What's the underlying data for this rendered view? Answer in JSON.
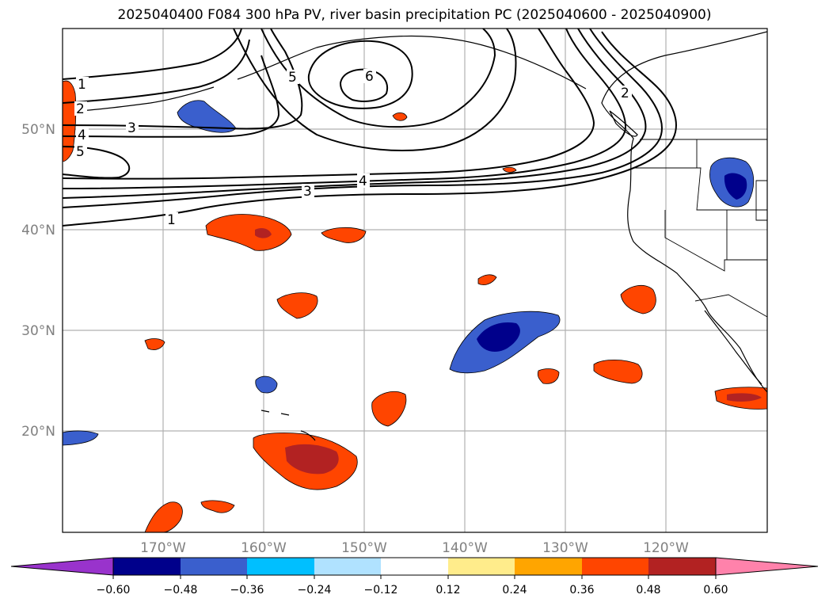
{
  "title": "2025040400 F084 300 hPa PV, river basin precipitation PC (2025040600 - 2025040900)",
  "map": {
    "lon_labels": [
      "170°W",
      "160°W",
      "150°W",
      "140°W",
      "130°W",
      "120°W"
    ],
    "lat_labels": [
      "50°N",
      "40°N",
      "30°N",
      "20°N"
    ],
    "contour_labels": [
      "1",
      "2",
      "3",
      "4",
      "5",
      "6",
      "2",
      "3",
      "4",
      "5",
      "1"
    ]
  },
  "colorbar": {
    "ticks": [
      "−0.60",
      "−0.48",
      "−0.36",
      "−0.24",
      "−0.12",
      "0.12",
      "0.24",
      "0.36",
      "0.48",
      "0.60"
    ],
    "colors": [
      "#9933cc",
      "#00008b",
      "#3a5fcd",
      "#00bfff",
      "#b0e2ff",
      "#ffffff",
      "#ffec8b",
      "#ffa500",
      "#ff4500",
      "#b22222",
      "#ff82ab"
    ]
  },
  "legend_colors": {
    "pos_strong": "#b22222",
    "pos_mid": "#ff4500",
    "pos_weak": "#ffa500",
    "pos_faint": "#ffec8b",
    "neg_strong": "#00008b",
    "neg_mid": "#3a5fcd",
    "neg_weak": "#00bfff"
  }
}
